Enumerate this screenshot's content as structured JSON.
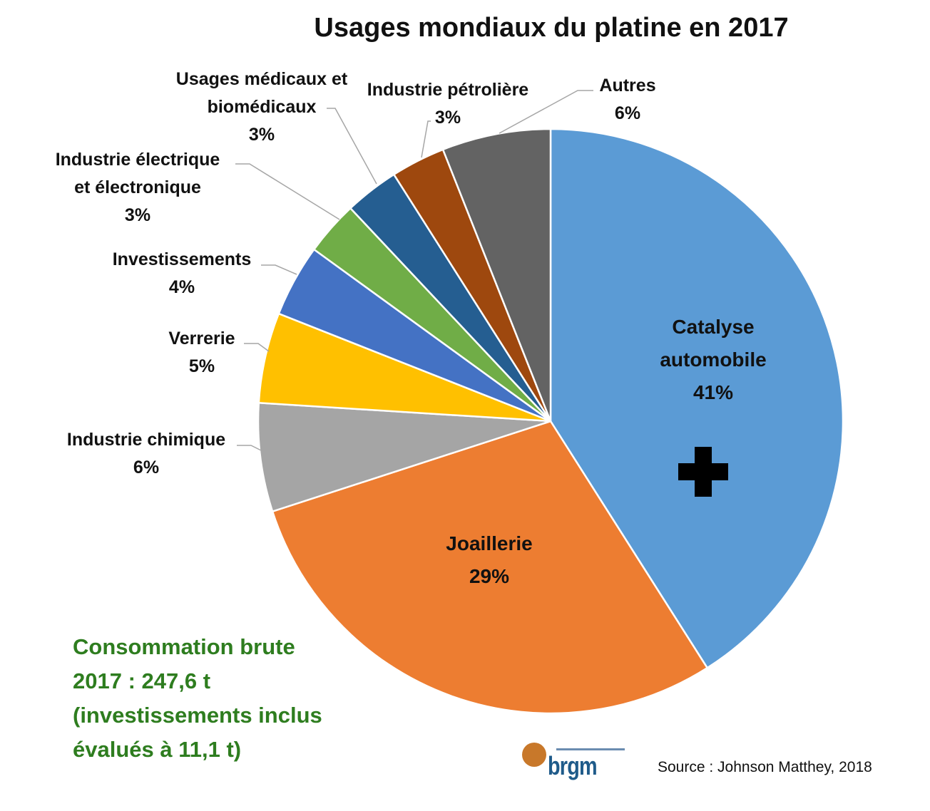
{
  "chart_data": {
    "type": "pie",
    "title": "Usages mondiaux du platine en 2017",
    "start": "top, clockwise",
    "slices": [
      {
        "label": "Catalyse\nautomobile",
        "value": 41,
        "display": "41%",
        "color": "#5b9bd5"
      },
      {
        "label": "Joaillerie",
        "value": 29,
        "display": "29%",
        "color": "#ed7d31"
      },
      {
        "label": "Industrie chimique",
        "value": 6,
        "display": "6%",
        "color": "#a5a5a5"
      },
      {
        "label": "Verrerie",
        "value": 5,
        "display": "5%",
        "color": "#ffc000"
      },
      {
        "label": "Investissements",
        "value": 4,
        "display": "4%",
        "color": "#4472c4"
      },
      {
        "label": "Industrie électrique\net électronique",
        "value": 3,
        "display": "3%",
        "color": "#70ad47"
      },
      {
        "label": "Usages médicaux et\nbiomédicaux",
        "value": 3,
        "display": "3%",
        "color": "#255e91"
      },
      {
        "label": "Industrie pétrolière",
        "value": 3,
        "display": "3%",
        "color": "#9e480e"
      },
      {
        "label": "Autres",
        "value": 6,
        "display": "6%",
        "color": "#636363"
      }
    ],
    "legend": "none (data labels)"
  },
  "note": "Consommation brute\n2017 : 247,6 t\n(investissements inclus\névalués à 11,1 t)",
  "source": "Source : Johnson Matthey, 2018",
  "logo": {
    "text": "brgm",
    "icon": "brgm-logo"
  },
  "cursor_icon": "move-cross-icon"
}
